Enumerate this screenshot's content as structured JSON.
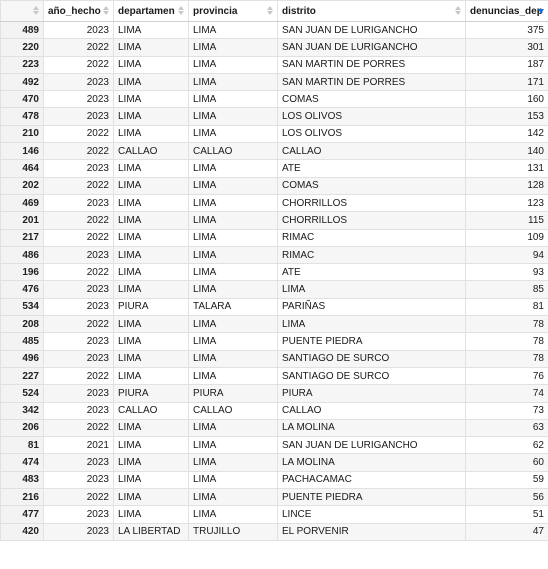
{
  "columns": [
    {
      "key": "rowname",
      "label": ""
    },
    {
      "key": "anio_hecho",
      "label": "año_hecho"
    },
    {
      "key": "departamento",
      "label": "departamen"
    },
    {
      "key": "provincia",
      "label": "provincia"
    },
    {
      "key": "distrito",
      "label": "distrito"
    },
    {
      "key": "denuncias_dep",
      "label": "denuncias_dep"
    }
  ],
  "sort": {
    "column": "denuncias_dep",
    "direction": "descending"
  },
  "rows": [
    [
      "489",
      "2023",
      "LIMA",
      "LIMA",
      "SAN JUAN DE LURIGANCHO",
      "375"
    ],
    [
      "220",
      "2022",
      "LIMA",
      "LIMA",
      "SAN JUAN DE LURIGANCHO",
      "301"
    ],
    [
      "223",
      "2022",
      "LIMA",
      "LIMA",
      "SAN MARTIN DE PORRES",
      "187"
    ],
    [
      "492",
      "2023",
      "LIMA",
      "LIMA",
      "SAN MARTIN DE PORRES",
      "171"
    ],
    [
      "470",
      "2023",
      "LIMA",
      "LIMA",
      "COMAS",
      "160"
    ],
    [
      "478",
      "2023",
      "LIMA",
      "LIMA",
      "LOS OLIVOS",
      "153"
    ],
    [
      "210",
      "2022",
      "LIMA",
      "LIMA",
      "LOS OLIVOS",
      "142"
    ],
    [
      "146",
      "2022",
      "CALLAO",
      "CALLAO",
      "CALLAO",
      "140"
    ],
    [
      "464",
      "2023",
      "LIMA",
      "LIMA",
      "ATE",
      "131"
    ],
    [
      "202",
      "2022",
      "LIMA",
      "LIMA",
      "COMAS",
      "128"
    ],
    [
      "469",
      "2023",
      "LIMA",
      "LIMA",
      "CHORRILLOS",
      "123"
    ],
    [
      "201",
      "2022",
      "LIMA",
      "LIMA",
      "CHORRILLOS",
      "115"
    ],
    [
      "217",
      "2022",
      "LIMA",
      "LIMA",
      "RIMAC",
      "109"
    ],
    [
      "486",
      "2023",
      "LIMA",
      "LIMA",
      "RIMAC",
      "94"
    ],
    [
      "196",
      "2022",
      "LIMA",
      "LIMA",
      "ATE",
      "93"
    ],
    [
      "476",
      "2023",
      "LIMA",
      "LIMA",
      "LIMA",
      "85"
    ],
    [
      "534",
      "2023",
      "PIURA",
      "TALARA",
      "PARIÑAS",
      "81"
    ],
    [
      "208",
      "2022",
      "LIMA",
      "LIMA",
      "LIMA",
      "78"
    ],
    [
      "485",
      "2023",
      "LIMA",
      "LIMA",
      "PUENTE PIEDRA",
      "78"
    ],
    [
      "496",
      "2023",
      "LIMA",
      "LIMA",
      "SANTIAGO DE SURCO",
      "78"
    ],
    [
      "227",
      "2022",
      "LIMA",
      "LIMA",
      "SANTIAGO DE SURCO",
      "76"
    ],
    [
      "524",
      "2023",
      "PIURA",
      "PIURA",
      "PIURA",
      "74"
    ],
    [
      "342",
      "2023",
      "CALLAO",
      "CALLAO",
      "CALLAO",
      "73"
    ],
    [
      "206",
      "2022",
      "LIMA",
      "LIMA",
      "LA MOLINA",
      "63"
    ],
    [
      "81",
      "2021",
      "LIMA",
      "LIMA",
      "SAN JUAN DE LURIGANCHO",
      "62"
    ],
    [
      "474",
      "2023",
      "LIMA",
      "LIMA",
      "LA MOLINA",
      "60"
    ],
    [
      "483",
      "2023",
      "LIMA",
      "LIMA",
      "PACHACAMAC",
      "59"
    ],
    [
      "216",
      "2022",
      "LIMA",
      "LIMA",
      "PUENTE PIEDRA",
      "56"
    ],
    [
      "477",
      "2023",
      "LIMA",
      "LIMA",
      "LINCE",
      "51"
    ],
    [
      "420",
      "2023",
      "LA LIBERTAD",
      "TRUJILLO",
      "EL PORVENIR",
      "47"
    ]
  ]
}
